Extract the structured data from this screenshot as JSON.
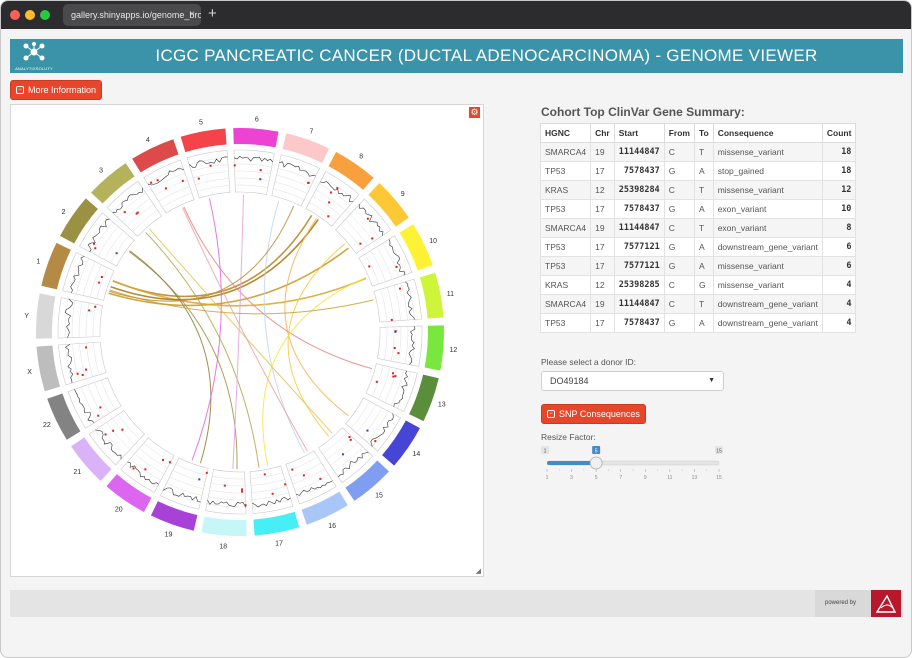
{
  "browser": {
    "tab_title": "gallery.shinyapps.io/genome_browser/",
    "new_tab_label": "+",
    "close_label": "×"
  },
  "header": {
    "logo_text": "ANALYTIXSOLUTY",
    "title": "ICGC PANCREATIC CANCER (DUCTAL ADENOCARCINOMA) - GENOME VIEWER"
  },
  "more_info_button": "More Information",
  "circos": {
    "chromosomes": [
      {
        "label": "1",
        "color": "#b58a44"
      },
      {
        "label": "2",
        "color": "#9b9142"
      },
      {
        "label": "3",
        "color": "#b4b25a"
      },
      {
        "label": "4",
        "color": "#dc4a4a"
      },
      {
        "label": "5",
        "color": "#f5434a"
      },
      {
        "label": "6",
        "color": "#ed43d3"
      },
      {
        "label": "7",
        "color": "#fdc8c9"
      },
      {
        "label": "8",
        "color": "#f8a03e"
      },
      {
        "label": "9",
        "color": "#fcc836"
      },
      {
        "label": "10",
        "color": "#fdf234"
      },
      {
        "label": "11",
        "color": "#cff53a"
      },
      {
        "label": "12",
        "color": "#79e83e"
      },
      {
        "label": "13",
        "color": "#5a8e3a"
      },
      {
        "label": "14",
        "color": "#4545d6"
      },
      {
        "label": "15",
        "color": "#7f9ef1"
      },
      {
        "label": "16",
        "color": "#a8c6f7"
      },
      {
        "label": "17",
        "color": "#48eef6"
      },
      {
        "label": "18",
        "color": "#c7f6f8"
      },
      {
        "label": "19",
        "color": "#a842d6"
      },
      {
        "label": "20",
        "color": "#dc66f0"
      },
      {
        "label": "21",
        "color": "#dab2f7"
      },
      {
        "label": "22",
        "color": "#838383"
      },
      {
        "label": "X",
        "color": "#bdbdbd"
      },
      {
        "label": "Y",
        "color": "#d8d8d8"
      }
    ]
  },
  "table": {
    "title": "Cohort Top ClinVar Gene Summary:",
    "headers": [
      "HGNC",
      "Chr",
      "Start",
      "From",
      "To",
      "Consequence",
      "Count"
    ],
    "rows": [
      [
        "SMARCA4",
        "19",
        "11144847",
        "C",
        "T",
        "missense_variant",
        "18"
      ],
      [
        "TP53",
        "17",
        "7578437",
        "G",
        "A",
        "stop_gained",
        "18"
      ],
      [
        "KRAS",
        "12",
        "25398284",
        "C",
        "T",
        "missense_variant",
        "12"
      ],
      [
        "TP53",
        "17",
        "7578437",
        "G",
        "A",
        "exon_variant",
        "10"
      ],
      [
        "SMARCA4",
        "19",
        "11144847",
        "C",
        "T",
        "exon_variant",
        "8"
      ],
      [
        "TP53",
        "17",
        "7577121",
        "G",
        "A",
        "downstream_gene_variant",
        "6"
      ],
      [
        "TP53",
        "17",
        "7577121",
        "G",
        "A",
        "missense_variant",
        "6"
      ],
      [
        "KRAS",
        "12",
        "25398285",
        "C",
        "G",
        "missense_variant",
        "4"
      ],
      [
        "SMARCA4",
        "19",
        "11144847",
        "C",
        "T",
        "downstream_gene_variant",
        "4"
      ],
      [
        "TP53",
        "17",
        "7578437",
        "G",
        "A",
        "downstream_gene_variant",
        "4"
      ]
    ]
  },
  "donor": {
    "label": "Please select a donor ID:",
    "value": "DO49184",
    "caret": "▼"
  },
  "snp_button": "SNP Consequences",
  "slider": {
    "label": "Resize Factor:",
    "min": 1,
    "max": 15,
    "value": 5,
    "min_label": "1",
    "max_label": "15",
    "value_label": "5",
    "ticks": [
      "1",
      "3",
      "5",
      "7",
      "9",
      "11",
      "13",
      "15"
    ]
  },
  "footer": {
    "powered_by": "powered by"
  }
}
